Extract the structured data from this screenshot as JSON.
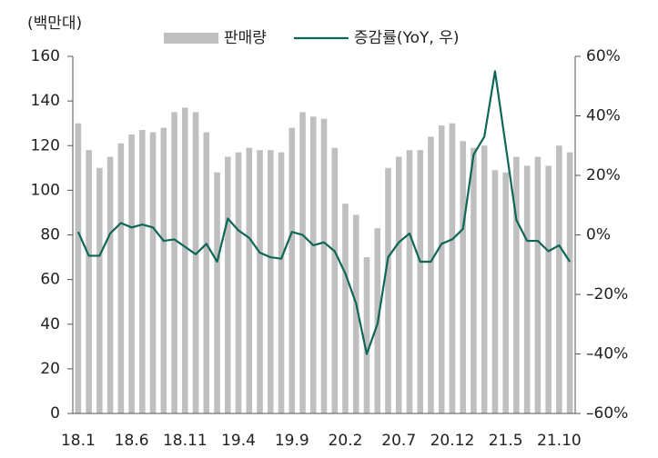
{
  "chart_data": {
    "type": "bar_line",
    "unit_label": "(백만대)",
    "categories": [
      "18.1",
      null,
      null,
      null,
      null,
      "18.6",
      null,
      null,
      null,
      null,
      "18.11",
      null,
      null,
      null,
      null,
      "19.4",
      null,
      null,
      null,
      null,
      "19.9",
      null,
      null,
      null,
      null,
      "20.2",
      null,
      null,
      null,
      null,
      "20.7",
      null,
      null,
      null,
      null,
      "20.12",
      null,
      null,
      null,
      null,
      "21.5",
      null,
      null,
      null,
      null,
      "21.10",
      null
    ],
    "series": [
      {
        "name": "판매량",
        "color": "#bfbfbf",
        "kind": "bar",
        "values": [
          130,
          118,
          110,
          115,
          121,
          125,
          127,
          126,
          128,
          135,
          137,
          135,
          126,
          108,
          115,
          117,
          119,
          118,
          118,
          117,
          128,
          135,
          133,
          132,
          119,
          94,
          89,
          70,
          83,
          110,
          115,
          118,
          118,
          124,
          129,
          130,
          122,
          119,
          120,
          109,
          108,
          115,
          111,
          115,
          111,
          120,
          117
        ]
      },
      {
        "name": "증감률(YoY, 우)",
        "color": "#0e6655",
        "kind": "line",
        "axis": "y2",
        "values": [
          1,
          -7,
          -7,
          0.5,
          4,
          2.5,
          3.5,
          2.5,
          -2,
          -1.5,
          -4,
          -6.5,
          -3,
          -9,
          5.5,
          1.5,
          -1,
          -6,
          -7.5,
          -8,
          1,
          0,
          -3.5,
          -2.5,
          -5.5,
          -13,
          -23,
          -40,
          -30,
          -7.5,
          -2.5,
          0.5,
          -9,
          -9,
          -3,
          -1.5,
          2,
          27,
          33,
          55,
          30,
          5,
          -2,
          -2,
          -5.5,
          -3.5,
          -9
        ]
      }
    ],
    "ylim": [
      0,
      160
    ],
    "yticks": [
      0,
      20,
      40,
      60,
      80,
      100,
      120,
      140,
      160
    ],
    "y2lim": [
      -60,
      60
    ],
    "y2ticks": [
      {
        "value": -60,
        "label": "–60%"
      },
      {
        "value": -40,
        "label": "–40%"
      },
      {
        "value": -20,
        "label": "–20%"
      },
      {
        "value": 0,
        "label": "0%"
      },
      {
        "value": 20,
        "label": "20%"
      },
      {
        "value": 40,
        "label": "40%"
      },
      {
        "value": 60,
        "label": "60%"
      }
    ],
    "legend": "top"
  }
}
